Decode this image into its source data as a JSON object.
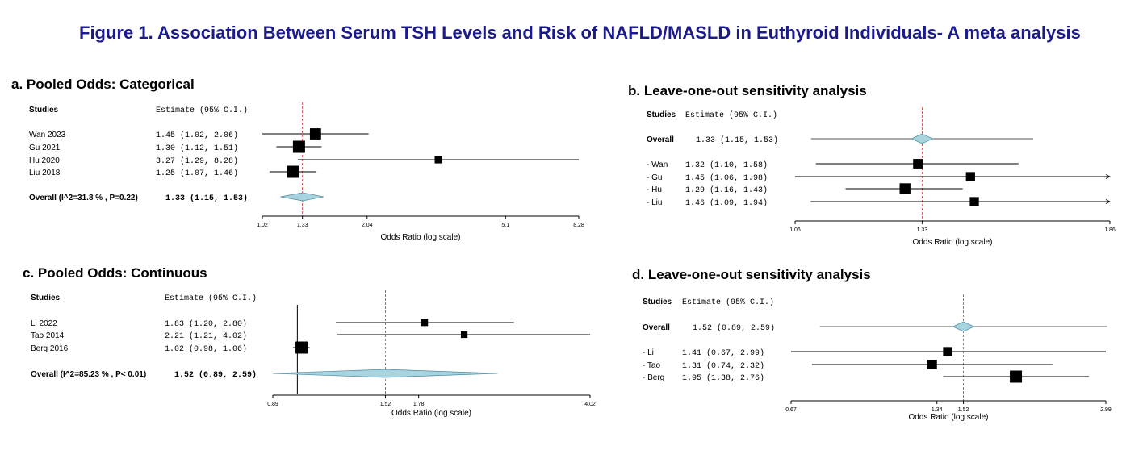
{
  "figure_title": "Figure 1.  Association Between Serum TSH Levels and Risk of NAFLD/MASLD in Euthyroid Individuals- A meta analysis",
  "chart_data": [
    {
      "type": "forest",
      "title": "a. Pooled Odds: Categorical",
      "header_label": "Studies",
      "header_estimate": "Estimate (95% C.I.)",
      "xlabel": "Odds Ratio (log scale)",
      "x_scale": "log",
      "xlim": [
        1.02,
        8.28
      ],
      "ticks": [
        1.02,
        1.33,
        2.04,
        5.1,
        8.28
      ],
      "tick_labels": [
        "1.02",
        "1.33",
        "2.04",
        "5.1",
        "8.28"
      ],
      "ref_line": 1.33,
      "studies": [
        {
          "label": "Wan  2023",
          "estimate": 1.45,
          "lower": 1.02,
          "upper": 2.06,
          "text": "1.45 (1.02, 2.06)",
          "weight": 22
        },
        {
          "label": "Gu 2021",
          "estimate": 1.3,
          "lower": 1.12,
          "upper": 1.51,
          "text": "1.30 (1.12, 1.51)",
          "weight": 38
        },
        {
          "label": "Hu 2020",
          "estimate": 3.27,
          "lower": 1.29,
          "upper": 8.28,
          "text": "3.27 (1.29, 8.28)",
          "weight": 6
        },
        {
          "label": "Liu 2018",
          "estimate": 1.25,
          "lower": 1.07,
          "upper": 1.46,
          "text": "1.25 (1.07, 1.46)",
          "weight": 34
        }
      ],
      "overall": {
        "label": "Overall (I^2=31.8 % , P=0.22)",
        "estimate": 1.33,
        "lower": 1.15,
        "upper": 1.53,
        "text": "1.33 (1.15, 1.53)"
      }
    },
    {
      "type": "forest",
      "title": "b. Leave-one-out sensitivity analysis",
      "header_label": "Studies",
      "header_estimate": "Estimate (95% C.I.)",
      "xlabel": "Odds Ratio (log scale)",
      "x_scale": "log",
      "xlim": [
        1.06,
        1.86
      ],
      "ticks": [
        1.06,
        1.33,
        1.86
      ],
      "tick_labels": [
        "1.06",
        "1.33",
        "1.86"
      ],
      "ref_line": 1.33,
      "overall": {
        "label": "Overall",
        "estimate": 1.33,
        "lower": 1.15,
        "upper": 1.53,
        "text": "1.33 (1.15, 1.53)"
      },
      "studies": [
        {
          "label": "- Wan",
          "estimate": 1.32,
          "lower": 1.1,
          "upper": 1.58,
          "text": "1.32 (1.10, 1.58)",
          "weight": 14,
          "arrow": false
        },
        {
          "label": "- Gu",
          "estimate": 1.45,
          "lower": 1.06,
          "upper": 1.98,
          "text": "1.45 (1.06, 1.98)",
          "weight": 12,
          "arrow": true
        },
        {
          "label": "- Hu",
          "estimate": 1.29,
          "lower": 1.16,
          "upper": 1.43,
          "text": "1.29 (1.16, 1.43)",
          "weight": 20,
          "arrow": false
        },
        {
          "label": "- Liu",
          "estimate": 1.46,
          "lower": 1.09,
          "upper": 1.94,
          "text": "1.46 (1.09, 1.94)",
          "weight": 12,
          "arrow": true
        }
      ]
    },
    {
      "type": "forest",
      "title": "c. Pooled Odds: Continuous",
      "header_label": "Studies",
      "header_estimate": "Estimate (95% C.I.)",
      "xlabel": "Odds Ratio (log scale)",
      "x_scale": "log",
      "xlim": [
        0.89,
        4.02
      ],
      "ticks": [
        0.89,
        1.52,
        1.78,
        4.02
      ],
      "tick_labels": [
        "0.89",
        "1.52",
        "1.78",
        "4.02"
      ],
      "ref_line": 1.52,
      "null_line": 1.0,
      "studies": [
        {
          "label": "Li 2022",
          "estimate": 1.83,
          "lower": 1.2,
          "upper": 2.8,
          "text": "1.83 (1.20, 2.80)",
          "weight": 5
        },
        {
          "label": "Tao  2014",
          "estimate": 2.21,
          "lower": 1.21,
          "upper": 4.02,
          "text": "2.21 (1.21, 4.02)",
          "weight": 4
        },
        {
          "label": "Berg 2016",
          "estimate": 1.02,
          "lower": 0.98,
          "upper": 1.06,
          "text": "1.02 (0.98, 1.06)",
          "weight": 91
        }
      ],
      "overall": {
        "label": "Overall (I^2=85.23 % , P< 0.01)",
        "estimate": 1.52,
        "lower": 0.89,
        "upper": 2.59,
        "text": "1.52 (0.89, 2.59)"
      }
    },
    {
      "type": "forest",
      "title": "d. Leave-one-out sensitivity analysis",
      "header_label": "Studies",
      "header_estimate": "Estimate (95% C.I.)",
      "xlabel": "Odds Ratio (log scale)",
      "x_scale": "log",
      "xlim": [
        0.67,
        2.99
      ],
      "ticks": [
        0.67,
        1.34,
        1.52,
        2.99
      ],
      "tick_labels": [
        "0.67",
        "1.34",
        "1.52",
        "2.99"
      ],
      "ref_line": 1.52,
      "overall": {
        "label": "Overall",
        "estimate": 1.52,
        "lower": 0.89,
        "upper": 2.59,
        "text": "1.52 (0.89, 2.59)"
      },
      "studies": [
        {
          "label": "- Li",
          "estimate": 1.41,
          "lower": 0.67,
          "upper": 2.99,
          "text": "1.41 (0.67, 2.99)",
          "weight": 12,
          "arrow": false
        },
        {
          "label": "- Tao",
          "estimate": 1.31,
          "lower": 0.74,
          "upper": 2.32,
          "text": "1.31 (0.74, 2.32)",
          "weight": 14,
          "arrow": false
        },
        {
          "label": "- Berg",
          "estimate": 1.95,
          "lower": 1.38,
          "upper": 2.76,
          "text": "1.95 (1.38, 2.76)",
          "weight": 28,
          "arrow": false
        }
      ]
    }
  ],
  "colors": {
    "title": "#1a1a8c",
    "diamond_fill": "#a8d4e0",
    "ref_line": "#cc3333",
    "marker": "#000000"
  }
}
